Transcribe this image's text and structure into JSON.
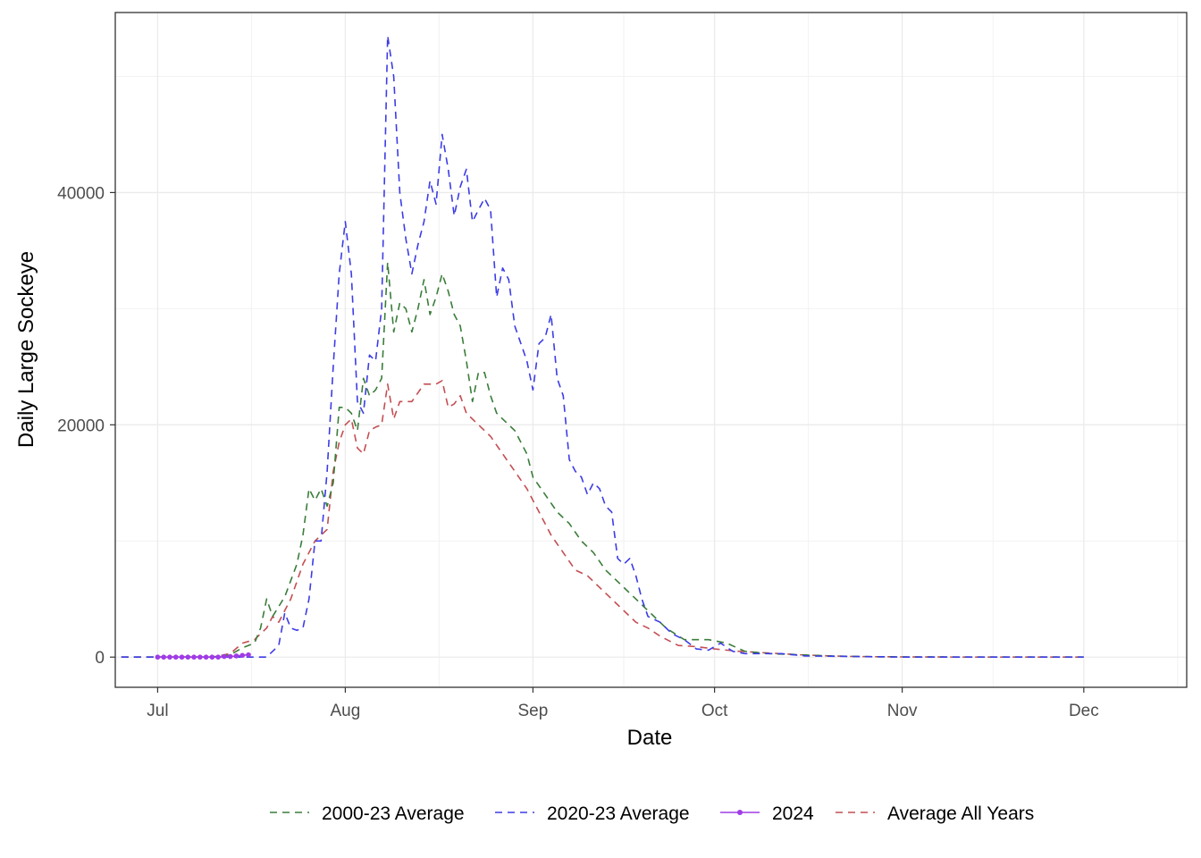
{
  "chart_data": {
    "type": "line",
    "xlabel": "Date",
    "ylabel": "Daily Large Sockeye",
    "x_ticks": [
      "Jul",
      "Aug",
      "Sep",
      "Oct",
      "Nov",
      "Dec"
    ],
    "y_ticks": [
      "0",
      "20000",
      "40000"
    ],
    "xlim": [
      "2024-06-24",
      "2024-12-18"
    ],
    "ylim": [
      -2600,
      55500
    ],
    "grid": true,
    "legend_position": "bottom",
    "series": [
      {
        "name": "2000-23 Average",
        "color": "#3a7d3a",
        "dashed": true,
        "points": [
          [
            "2024-06-25",
            0
          ],
          [
            "2024-07-05",
            0
          ],
          [
            "2024-07-10",
            0
          ],
          [
            "2024-07-13",
            200
          ],
          [
            "2024-07-15",
            800
          ],
          [
            "2024-07-17",
            1200
          ],
          [
            "2024-07-18",
            2500
          ],
          [
            "2024-07-19",
            5000
          ],
          [
            "2024-07-20",
            3500
          ],
          [
            "2024-07-22",
            5200
          ],
          [
            "2024-07-24",
            8000
          ],
          [
            "2024-07-25",
            10500
          ],
          [
            "2024-07-26",
            14500
          ],
          [
            "2024-07-27",
            13500
          ],
          [
            "2024-07-28",
            14500
          ],
          [
            "2024-07-29",
            13000
          ],
          [
            "2024-07-30",
            15000
          ],
          [
            "2024-07-31",
            21500
          ],
          [
            "2024-08-01",
            21500
          ],
          [
            "2024-08-02",
            21000
          ],
          [
            "2024-08-03",
            19500
          ],
          [
            "2024-08-04",
            24000
          ],
          [
            "2024-08-05",
            22500
          ],
          [
            "2024-08-06",
            23000
          ],
          [
            "2024-08-07",
            24000
          ],
          [
            "2024-08-08",
            34000
          ],
          [
            "2024-08-09",
            28000
          ],
          [
            "2024-08-10",
            30500
          ],
          [
            "2024-08-11",
            30000
          ],
          [
            "2024-08-12",
            28000
          ],
          [
            "2024-08-13",
            30000
          ],
          [
            "2024-08-14",
            32500
          ],
          [
            "2024-08-15",
            29500
          ],
          [
            "2024-08-16",
            31000
          ],
          [
            "2024-08-17",
            33000
          ],
          [
            "2024-08-18",
            31500
          ],
          [
            "2024-08-19",
            29500
          ],
          [
            "2024-08-20",
            28500
          ],
          [
            "2024-08-21",
            25500
          ],
          [
            "2024-08-22",
            22000
          ],
          [
            "2024-08-23",
            24500
          ],
          [
            "2024-08-24",
            24500
          ],
          [
            "2024-08-25",
            22500
          ],
          [
            "2024-08-26",
            21000
          ],
          [
            "2024-08-27",
            20500
          ],
          [
            "2024-08-29",
            19500
          ],
          [
            "2024-08-31",
            17500
          ],
          [
            "2024-09-01",
            15500
          ],
          [
            "2024-09-03",
            14000
          ],
          [
            "2024-09-05",
            12500
          ],
          [
            "2024-09-07",
            11500
          ],
          [
            "2024-09-09",
            10000
          ],
          [
            "2024-09-11",
            9000
          ],
          [
            "2024-09-13",
            7500
          ],
          [
            "2024-09-15",
            6500
          ],
          [
            "2024-09-17",
            5500
          ],
          [
            "2024-09-20",
            4000
          ],
          [
            "2024-09-23",
            2500
          ],
          [
            "2024-09-26",
            1500
          ],
          [
            "2024-09-30",
            1500
          ],
          [
            "2024-10-03",
            1200
          ],
          [
            "2024-10-06",
            500
          ],
          [
            "2024-10-10",
            300
          ],
          [
            "2024-10-15",
            200
          ],
          [
            "2024-10-20",
            100
          ],
          [
            "2024-10-25",
            50
          ],
          [
            "2024-11-01",
            20
          ],
          [
            "2024-11-15",
            0
          ],
          [
            "2024-12-01",
            0
          ]
        ]
      },
      {
        "name": "2020-23 Average",
        "color": "#3c3ce6",
        "dashed": true,
        "points": [
          [
            "2024-06-25",
            0
          ],
          [
            "2024-07-05",
            0
          ],
          [
            "2024-07-10",
            0
          ],
          [
            "2024-07-15",
            0
          ],
          [
            "2024-07-19",
            0
          ],
          [
            "2024-07-21",
            1000
          ],
          [
            "2024-07-22",
            3800
          ],
          [
            "2024-07-23",
            2500
          ],
          [
            "2024-07-24",
            2300
          ],
          [
            "2024-07-25",
            2500
          ],
          [
            "2024-07-26",
            5000
          ],
          [
            "2024-07-27",
            10000
          ],
          [
            "2024-07-28",
            10000
          ],
          [
            "2024-07-29",
            16000
          ],
          [
            "2024-07-30",
            25000
          ],
          [
            "2024-07-31",
            33000
          ],
          [
            "2024-08-01",
            37500
          ],
          [
            "2024-08-02",
            33000
          ],
          [
            "2024-08-03",
            22000
          ],
          [
            "2024-08-04",
            21000
          ],
          [
            "2024-08-05",
            26000
          ],
          [
            "2024-08-06",
            25500
          ],
          [
            "2024-08-07",
            30000
          ],
          [
            "2024-08-08",
            53500
          ],
          [
            "2024-08-09",
            50000
          ],
          [
            "2024-08-10",
            40000
          ],
          [
            "2024-08-11",
            36000
          ],
          [
            "2024-08-12",
            33000
          ],
          [
            "2024-08-13",
            35500
          ],
          [
            "2024-08-14",
            37500
          ],
          [
            "2024-08-15",
            41000
          ],
          [
            "2024-08-16",
            39000
          ],
          [
            "2024-08-17",
            45000
          ],
          [
            "2024-08-18",
            42000
          ],
          [
            "2024-08-19",
            38000
          ],
          [
            "2024-08-20",
            40500
          ],
          [
            "2024-08-21",
            42000
          ],
          [
            "2024-08-22",
            37500
          ],
          [
            "2024-08-23",
            38500
          ],
          [
            "2024-08-24",
            39500
          ],
          [
            "2024-08-25",
            38500
          ],
          [
            "2024-08-26",
            31000
          ],
          [
            "2024-08-27",
            33500
          ],
          [
            "2024-08-28",
            32500
          ],
          [
            "2024-08-29",
            28500
          ],
          [
            "2024-08-30",
            27000
          ],
          [
            "2024-08-31",
            25500
          ],
          [
            "2024-09-01",
            23000
          ],
          [
            "2024-09-02",
            27000
          ],
          [
            "2024-09-03",
            27500
          ],
          [
            "2024-09-04",
            29500
          ],
          [
            "2024-09-05",
            24000
          ],
          [
            "2024-09-06",
            22500
          ],
          [
            "2024-09-07",
            17000
          ],
          [
            "2024-09-08",
            16000
          ],
          [
            "2024-09-09",
            15500
          ],
          [
            "2024-09-10",
            14000
          ],
          [
            "2024-09-11",
            15000
          ],
          [
            "2024-09-12",
            14500
          ],
          [
            "2024-09-13",
            13000
          ],
          [
            "2024-09-14",
            12500
          ],
          [
            "2024-09-15",
            8500
          ],
          [
            "2024-09-16",
            8000
          ],
          [
            "2024-09-17",
            8500
          ],
          [
            "2024-09-18",
            7000
          ],
          [
            "2024-09-19",
            5000
          ],
          [
            "2024-09-20",
            3500
          ],
          [
            "2024-09-22",
            3000
          ],
          [
            "2024-09-24",
            2000
          ],
          [
            "2024-09-26",
            1500
          ],
          [
            "2024-09-28",
            700
          ],
          [
            "2024-09-30",
            600
          ],
          [
            "2024-10-02",
            1200
          ],
          [
            "2024-10-04",
            500
          ],
          [
            "2024-10-06",
            300
          ],
          [
            "2024-10-09",
            300
          ],
          [
            "2024-10-12",
            300
          ],
          [
            "2024-10-16",
            100
          ],
          [
            "2024-10-25",
            50
          ],
          [
            "2024-11-01",
            0
          ],
          [
            "2024-12-01",
            0
          ]
        ]
      },
      {
        "name": "2024",
        "color": "#a03ce6",
        "dashed": false,
        "points": [
          [
            "2024-07-01",
            0
          ],
          [
            "2024-07-02",
            0
          ],
          [
            "2024-07-03",
            0
          ],
          [
            "2024-07-04",
            0
          ],
          [
            "2024-07-05",
            0
          ],
          [
            "2024-07-06",
            0
          ],
          [
            "2024-07-07",
            0
          ],
          [
            "2024-07-08",
            0
          ],
          [
            "2024-07-09",
            0
          ],
          [
            "2024-07-10",
            0
          ],
          [
            "2024-07-11",
            0
          ],
          [
            "2024-07-12",
            50
          ],
          [
            "2024-07-13",
            50
          ],
          [
            "2024-07-14",
            100
          ],
          [
            "2024-07-15",
            150
          ],
          [
            "2024-07-16",
            200
          ]
        ]
      },
      {
        "name": "Average All Years",
        "color": "#c44e52",
        "dashed": true,
        "points": [
          [
            "2024-06-25",
            0
          ],
          [
            "2024-07-05",
            0
          ],
          [
            "2024-07-10",
            0
          ],
          [
            "2024-07-13",
            300
          ],
          [
            "2024-07-15",
            1200
          ],
          [
            "2024-07-17",
            1500
          ],
          [
            "2024-07-19",
            2500
          ],
          [
            "2024-07-20",
            3500
          ],
          [
            "2024-07-21",
            3000
          ],
          [
            "2024-07-23",
            5000
          ],
          [
            "2024-07-25",
            8000
          ],
          [
            "2024-07-27",
            10000
          ],
          [
            "2024-07-28",
            10500
          ],
          [
            "2024-07-29",
            11000
          ],
          [
            "2024-07-30",
            16000
          ],
          [
            "2024-07-31",
            18500
          ],
          [
            "2024-08-01",
            20000
          ],
          [
            "2024-08-02",
            20500
          ],
          [
            "2024-08-03",
            18000
          ],
          [
            "2024-08-04",
            17500
          ],
          [
            "2024-08-05",
            19500
          ],
          [
            "2024-08-06",
            19800
          ],
          [
            "2024-08-07",
            20000
          ],
          [
            "2024-08-08",
            23500
          ],
          [
            "2024-08-09",
            20500
          ],
          [
            "2024-08-10",
            22000
          ],
          [
            "2024-08-12",
            22000
          ],
          [
            "2024-08-14",
            23500
          ],
          [
            "2024-08-16",
            23500
          ],
          [
            "2024-08-17",
            23800
          ],
          [
            "2024-08-18",
            21500
          ],
          [
            "2024-08-19",
            21800
          ],
          [
            "2024-08-20",
            22500
          ],
          [
            "2024-08-21",
            21000
          ],
          [
            "2024-08-23",
            20000
          ],
          [
            "2024-08-25",
            19000
          ],
          [
            "2024-08-27",
            17500
          ],
          [
            "2024-08-29",
            16000
          ],
          [
            "2024-08-31",
            14500
          ],
          [
            "2024-09-02",
            12500
          ],
          [
            "2024-09-04",
            10500
          ],
          [
            "2024-09-06",
            9000
          ],
          [
            "2024-09-08",
            7500
          ],
          [
            "2024-09-10",
            7000
          ],
          [
            "2024-09-12",
            6000
          ],
          [
            "2024-09-14",
            5000
          ],
          [
            "2024-09-16",
            4000
          ],
          [
            "2024-09-18",
            3000
          ],
          [
            "2024-09-20",
            2500
          ],
          [
            "2024-09-22",
            1800
          ],
          [
            "2024-09-25",
            1000
          ],
          [
            "2024-09-28",
            900
          ],
          [
            "2024-10-01",
            700
          ],
          [
            "2024-10-05",
            500
          ],
          [
            "2024-10-10",
            350
          ],
          [
            "2024-10-15",
            200
          ],
          [
            "2024-10-20",
            100
          ],
          [
            "2024-10-25",
            50
          ],
          [
            "2024-11-01",
            20
          ],
          [
            "2024-11-15",
            0
          ],
          [
            "2024-12-01",
            0
          ]
        ]
      }
    ]
  }
}
